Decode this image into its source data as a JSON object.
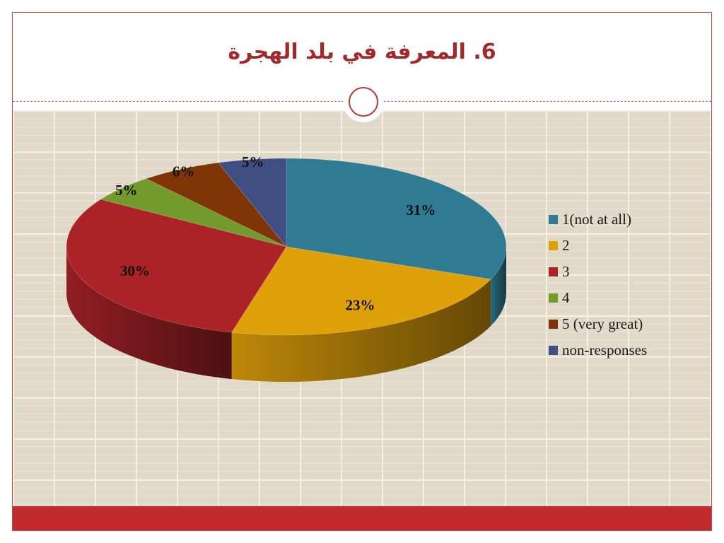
{
  "slide": {
    "title": "6. المعرفة في بلد الهجرة"
  },
  "chart_data": {
    "type": "pie",
    "style": "3d-exploded-view",
    "categories": [
      "1(not at all)",
      "2",
      "3",
      "4",
      "5 (very great)",
      "non-responses"
    ],
    "values": [
      31,
      23,
      30,
      5,
      6,
      5
    ],
    "labels": [
      "31%",
      "23%",
      "30%",
      "5%",
      "6%",
      "5%"
    ],
    "unit": "%",
    "colors": [
      "#2f7b93",
      "#dfa00a",
      "#ab2329",
      "#729a2c",
      "#7f3508",
      "#3f4f84"
    ],
    "legend_position": "right"
  }
}
